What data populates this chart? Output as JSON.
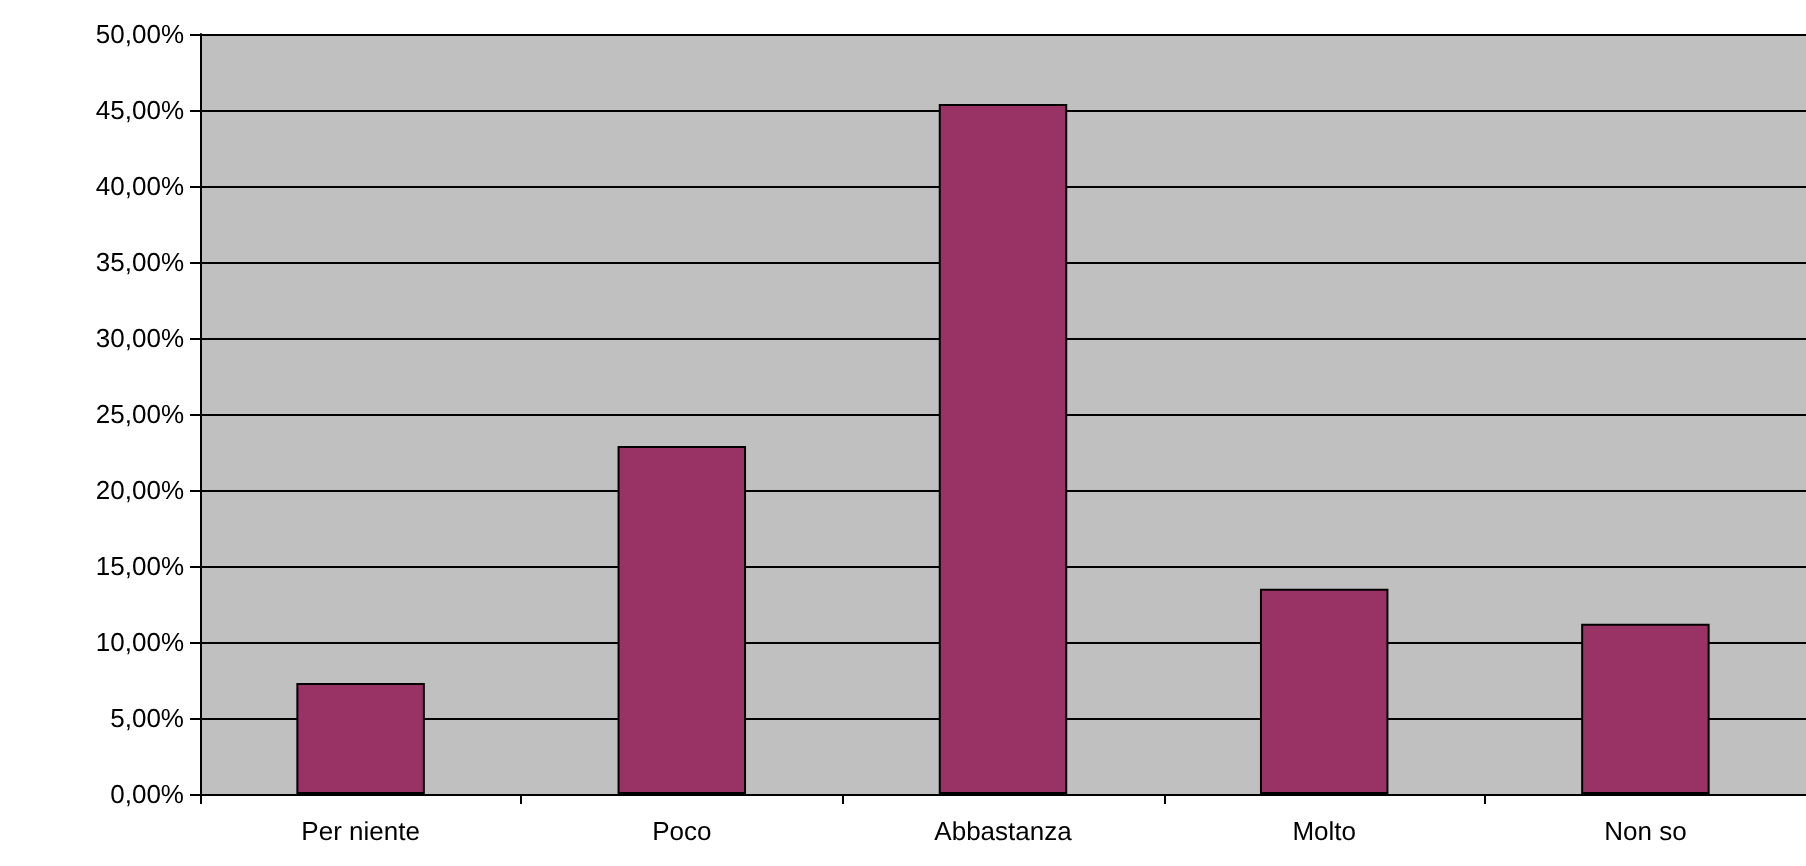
{
  "chart_data": {
    "type": "bar",
    "categories": [
      "Per niente",
      "Poco",
      "Abbastanza",
      "Molto",
      "Non so"
    ],
    "values": [
      7.3,
      22.9,
      45.4,
      13.5,
      11.2
    ],
    "color": "#993366",
    "ylim": [
      0,
      50
    ],
    "yticks": [
      {
        "value": 0,
        "label": "0,00%"
      },
      {
        "value": 5,
        "label": "5,00%"
      },
      {
        "value": 10,
        "label": "10,00%"
      },
      {
        "value": 15,
        "label": "15,00%"
      },
      {
        "value": 20,
        "label": "20,00%"
      },
      {
        "value": 25,
        "label": "25,00%"
      },
      {
        "value": 30,
        "label": "30,00%"
      },
      {
        "value": 35,
        "label": "35,00%"
      },
      {
        "value": 40,
        "label": "40,00%"
      },
      {
        "value": 45,
        "label": "45,00%"
      },
      {
        "value": 50,
        "label": "50,00%"
      }
    ],
    "grid": "y"
  }
}
